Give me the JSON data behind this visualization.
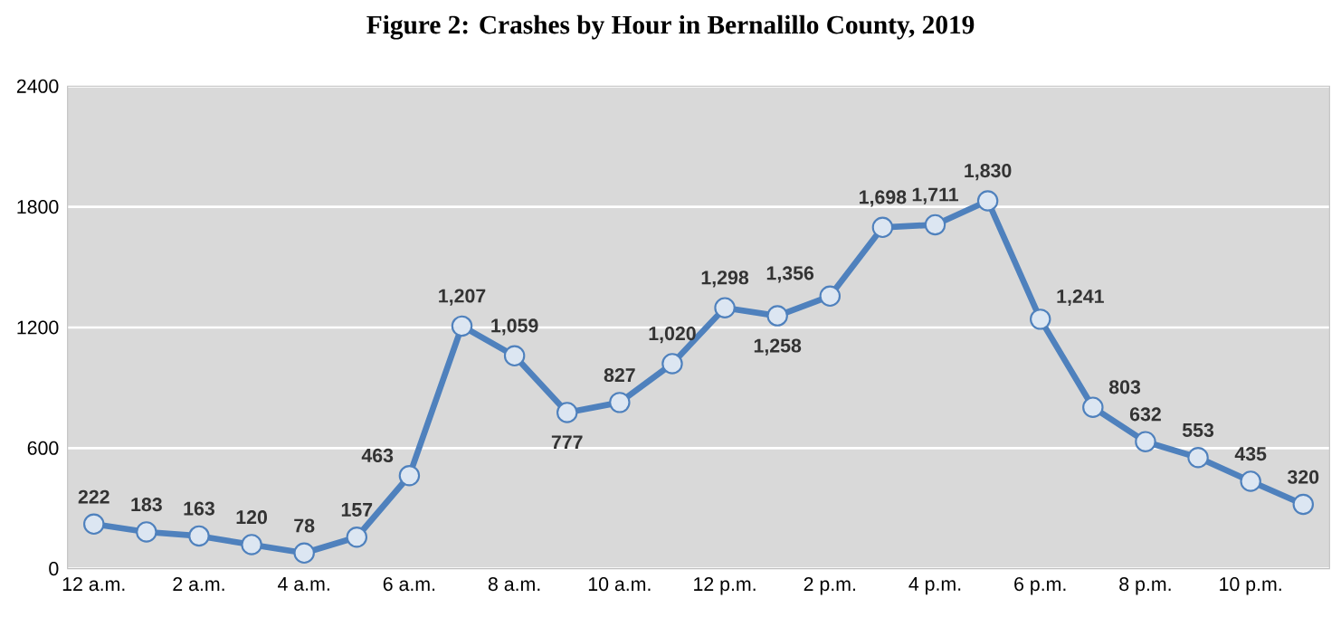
{
  "chart_data": {
    "type": "line",
    "title": "Figure 2: Crashes by Hour in Bernalillo County, 2019",
    "categories": [
      "12 a.m.",
      null,
      "2 a.m.",
      null,
      "4 a.m.",
      null,
      "6 a.m.",
      null,
      "8 a.m.",
      null,
      "10 a.m.",
      null,
      "12 p.m.",
      null,
      "2 p.m.",
      null,
      "4 p.m.",
      null,
      "6 p.m.",
      null,
      "8 p.m.",
      null,
      "10 p.m.",
      null
    ],
    "series": [
      {
        "color": "#4f81bd",
        "values": [
          222,
          183,
          163,
          120,
          78,
          157,
          463,
          1207,
          1059,
          777,
          827,
          1020,
          1298,
          1258,
          1356,
          1698,
          1711,
          1830,
          1241,
          803,
          632,
          553,
          435,
          320
        ],
        "value_labels": [
          "222",
          "183",
          "163",
          "120",
          "78",
          "157",
          "463",
          "1,207",
          "1,059",
          "777",
          "827",
          "1,020",
          "1,298",
          "1,258",
          "1,356",
          "1,698",
          "1,711",
          "1,830",
          "1,241",
          "803",
          "632",
          "553",
          "435",
          "320"
        ]
      }
    ],
    "ylim": [
      0,
      2400
    ],
    "yticks": [
      0,
      600,
      1200,
      1800,
      2400
    ],
    "grid": "y",
    "marker": "circle",
    "line_style": "solid"
  }
}
